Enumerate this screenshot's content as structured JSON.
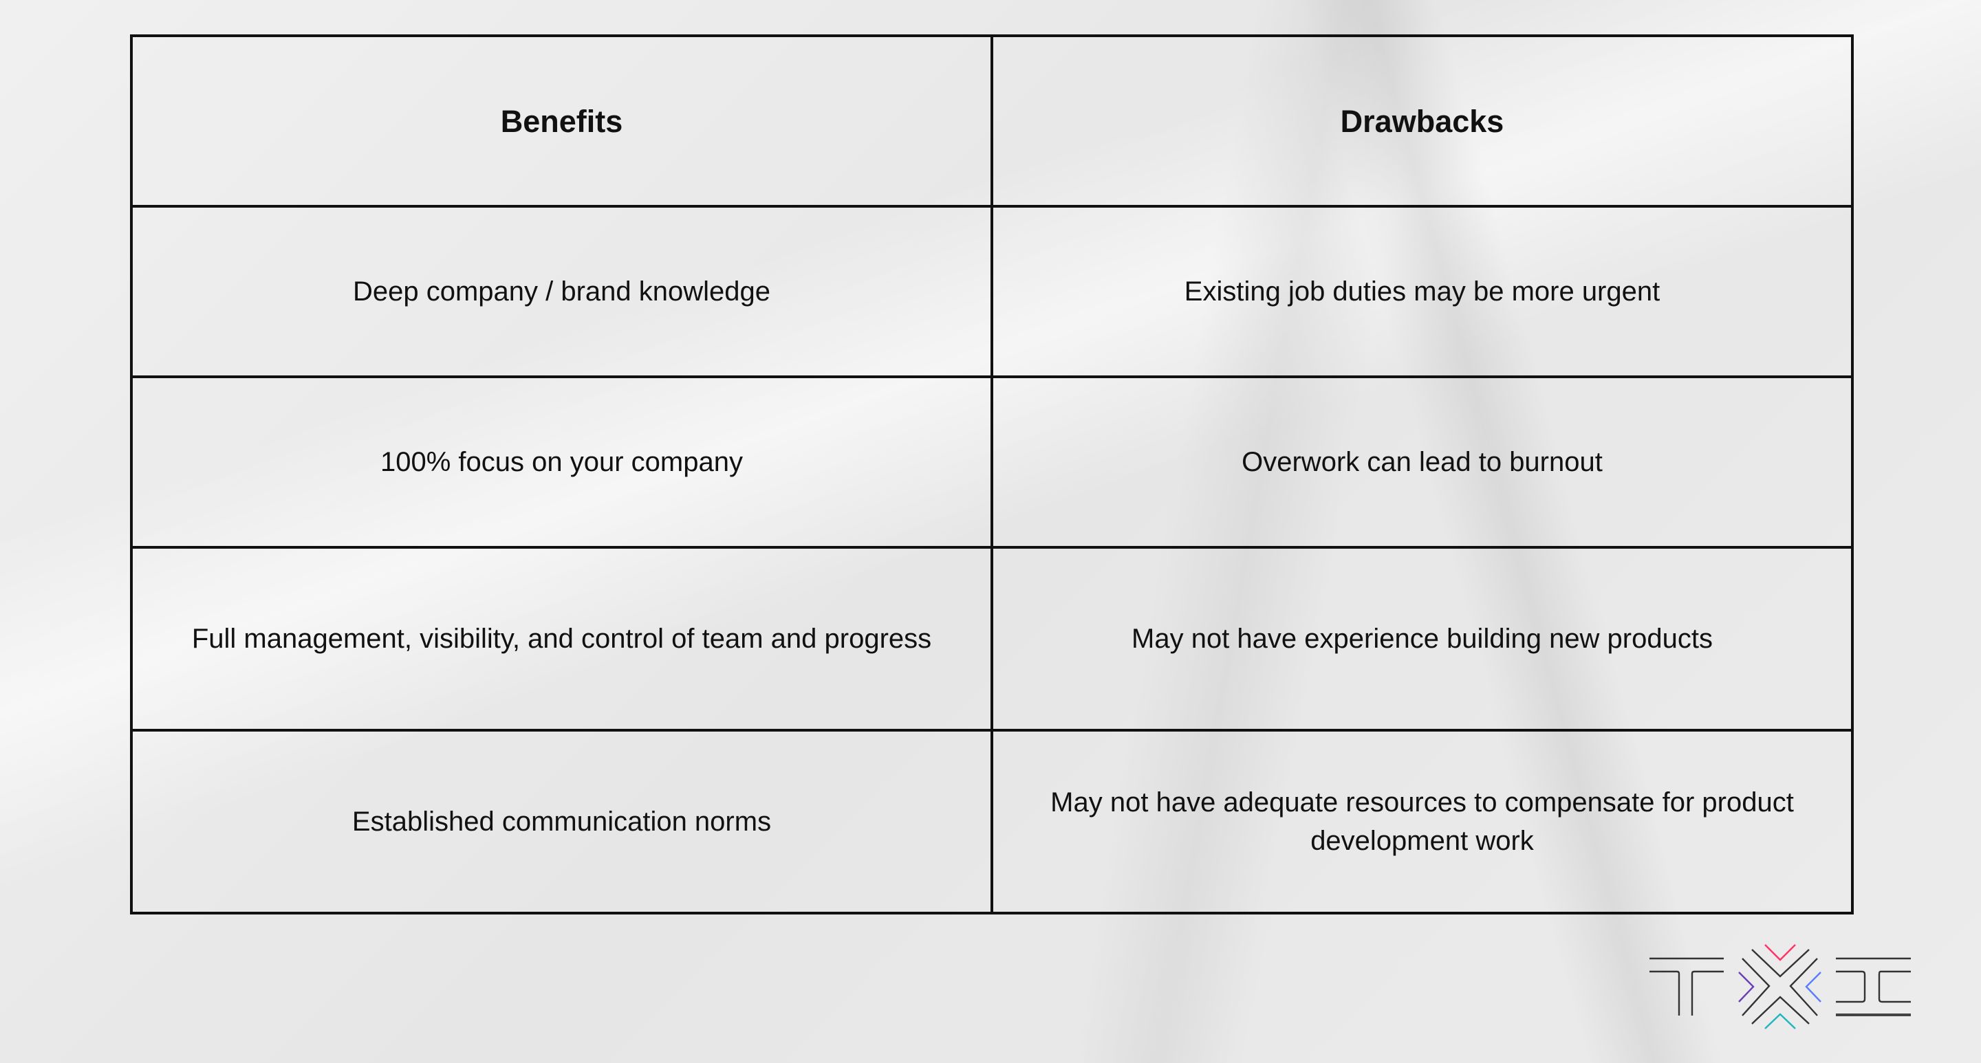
{
  "table": {
    "headers": [
      "Benefits",
      "Drawbacks"
    ],
    "rows": [
      [
        "Deep company / brand knowledge",
        "Existing job duties may be more urgent"
      ],
      [
        "100% focus on your company",
        "Overwork can lead to burnout"
      ],
      [
        "Full management, visibility, and control of team and progress",
        "May not have experience building new products"
      ],
      [
        "Established communication norms",
        "May not have adequate resources to compensate for product development work"
      ]
    ]
  },
  "logo": {
    "text": "TXC",
    "colors": {
      "top": "#ff3366",
      "left": "#6a3fb5",
      "right": "#5a7cff",
      "bottom": "#1fb5c0"
    }
  }
}
